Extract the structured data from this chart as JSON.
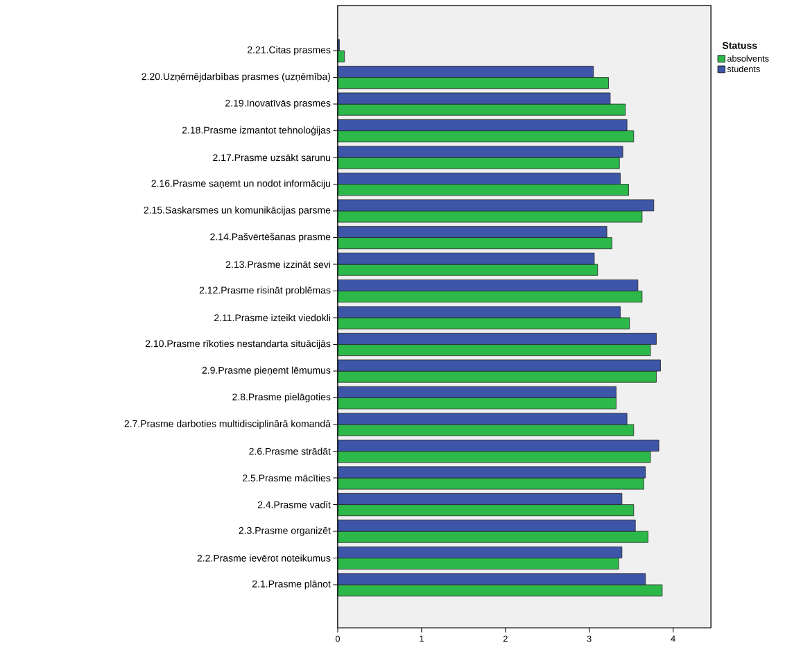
{
  "chart_data": {
    "type": "bar",
    "orientation": "horizontal",
    "legend_title": "Statuss",
    "legend": "right",
    "categories": [
      "2.21.Citas prasmes",
      "2.20.Uzņēmējdarbības prasmes (uzņēmība)",
      "2.19.Inovatīvās prasmes",
      "2.18.Prasme izmantot tehnoloģijas",
      "2.17.Prasme uzsākt sarunu",
      "2.16.Prasme saņemt un nodot informāciju",
      "2.15.Saskarsmes un komunikācijas parsme",
      "2.14.Pašvērtēšanas prasme",
      "2.13.Prasme izzināt sevi",
      "2.12.Prasme risināt problēmas",
      "2.11.Prasme izteikt viedokli",
      "2.10.Prasme rīkoties nestandarta situācijās",
      "2.9.Prasme pieņemt lēmumus",
      "2.8.Prasme pielāgoties",
      "2.7.Prasme darboties multidisciplinārā komandā",
      "2.6.Prasme strādāt",
      "2.5.Prasme mācīties",
      "2.4.Prasme vadīt",
      "2.3.Prasme organizēt",
      "2.2.Prasme ievērot noteikumus",
      "2.1.Prasme plānot"
    ],
    "series": [
      {
        "name": "absolvents",
        "color": "#2db84a",
        "values": [
          0.08,
          3.23,
          3.43,
          3.53,
          3.36,
          3.47,
          3.63,
          3.27,
          3.1,
          3.63,
          3.48,
          3.73,
          3.8,
          3.32,
          3.53,
          3.73,
          3.65,
          3.53,
          3.7,
          3.35,
          3.87
        ]
      },
      {
        "name": "students",
        "color": "#3d56a8",
        "values": [
          0.02,
          3.05,
          3.25,
          3.45,
          3.4,
          3.37,
          3.77,
          3.21,
          3.06,
          3.58,
          3.37,
          3.8,
          3.85,
          3.32,
          3.45,
          3.83,
          3.67,
          3.39,
          3.55,
          3.39,
          3.67
        ]
      }
    ],
    "xlim": [
      0,
      4.45
    ],
    "xticks": [
      0,
      1,
      2,
      3,
      4
    ]
  }
}
